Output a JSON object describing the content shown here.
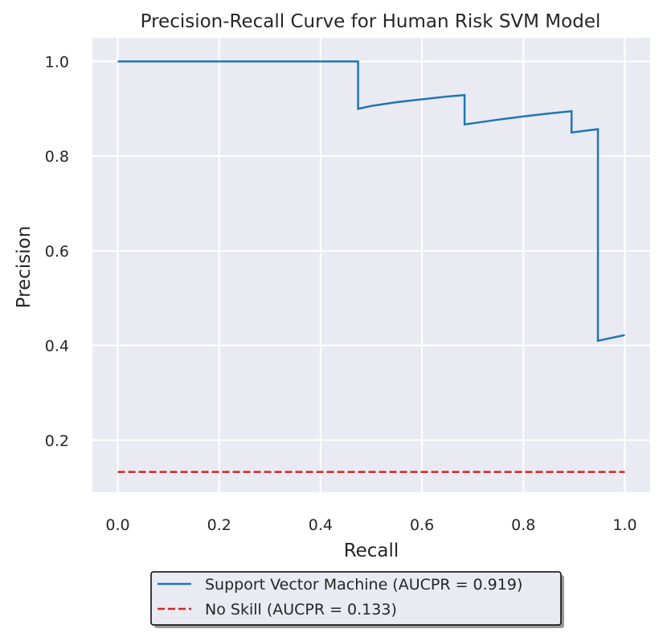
{
  "chart_data": {
    "type": "line",
    "title": "Precision-Recall Curve for Human Risk SVM Model",
    "xlabel": "Recall",
    "ylabel": "Precision",
    "xlim": [
      -0.05,
      1.05
    ],
    "ylim": [
      0.09,
      1.05
    ],
    "xticks": [
      0.0,
      0.2,
      0.4,
      0.6,
      0.8,
      1.0
    ],
    "xtick_labels": [
      "0.0",
      "0.2",
      "0.4",
      "0.6",
      "0.8",
      "1.0"
    ],
    "yticks": [
      0.2,
      0.4,
      0.6,
      0.8,
      1.0
    ],
    "ytick_labels": [
      "0.2",
      "0.4",
      "0.6",
      "0.8",
      "1.0"
    ],
    "grid": true,
    "legend_position": "below",
    "series": [
      {
        "name": "Support Vector Machine (AUCPR = 0.919)",
        "color": "#1f77b4",
        "style": "solid",
        "x": [
          0.0,
          0.474,
          0.474,
          0.5,
          0.55,
          0.6,
          0.65,
          0.684,
          0.684,
          0.75,
          0.8,
          0.85,
          0.895,
          0.895,
          0.947,
          0.947,
          1.0
        ],
        "y": [
          1.0,
          1.0,
          0.9,
          0.906,
          0.914,
          0.92,
          0.926,
          0.929,
          0.867,
          0.877,
          0.884,
          0.89,
          0.895,
          0.85,
          0.857,
          0.41,
          0.422
        ]
      },
      {
        "name": "No Skill (AUCPR = 0.133)",
        "color": "#d62728",
        "style": "dashed",
        "x": [
          0.0,
          1.0
        ],
        "y": [
          0.133,
          0.133
        ]
      }
    ]
  }
}
